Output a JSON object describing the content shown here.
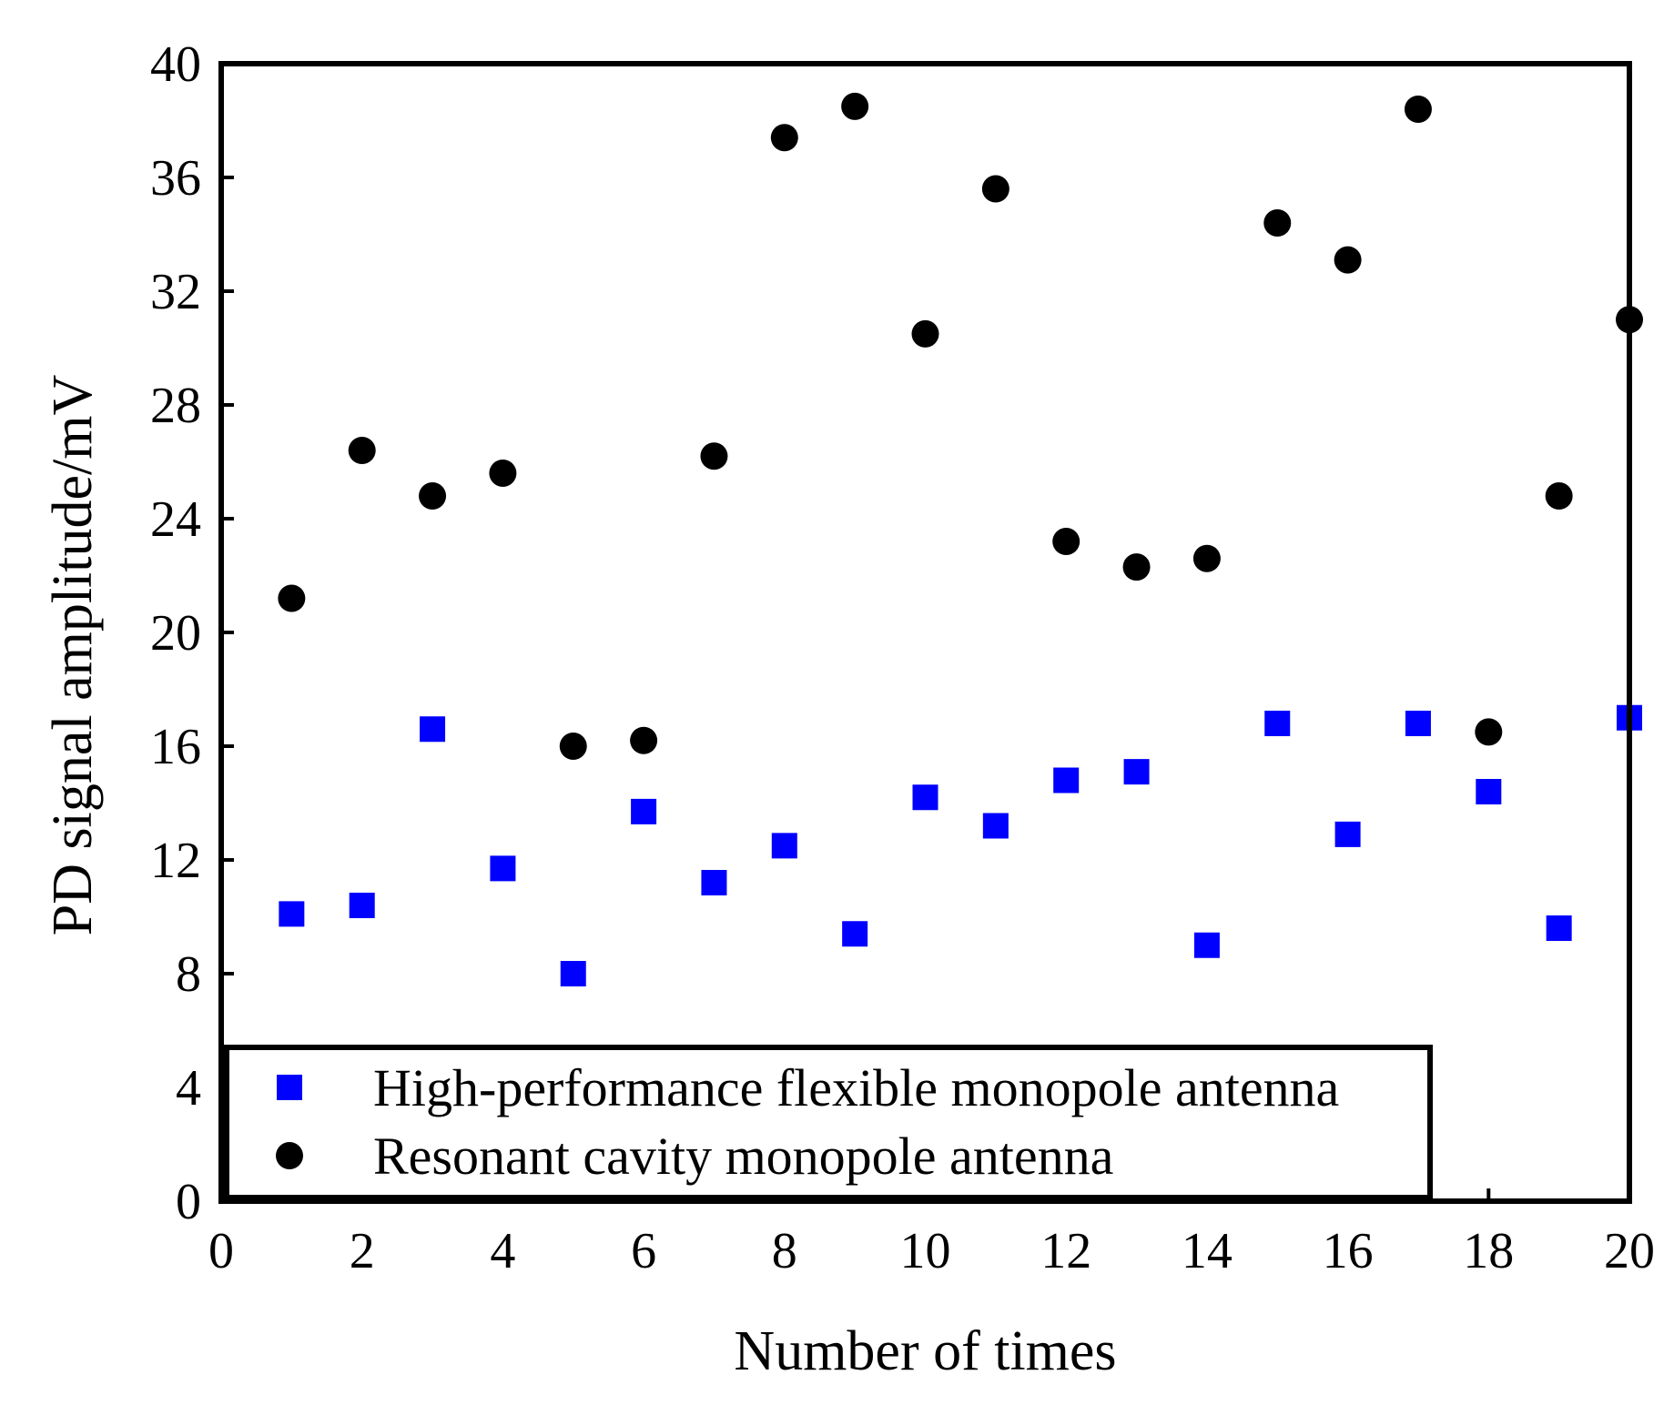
{
  "chart_data": {
    "type": "scatter",
    "title": "",
    "xlabel": "Number of times",
    "ylabel": "PD signal amplitude/mV",
    "xlim": [
      0,
      20
    ],
    "ylim": [
      0,
      40
    ],
    "xticks": [
      "0",
      "2",
      "4",
      "6",
      "8",
      "10",
      "12",
      "14",
      "16",
      "18",
      "20"
    ],
    "yticks": [
      "0",
      "4",
      "8",
      "12",
      "16",
      "20",
      "24",
      "28",
      "32",
      "36",
      "40"
    ],
    "grid": false,
    "legend_position": "bottom-left",
    "series": [
      {
        "name": "High-performance flexible monopole antenna",
        "marker": "square",
        "color": "#0000ff",
        "x": [
          1,
          2,
          3,
          4,
          5,
          6,
          7,
          8,
          9,
          10,
          11,
          12,
          13,
          14,
          15,
          16,
          17,
          18,
          19,
          20
        ],
        "y": [
          10.1,
          10.4,
          16.6,
          11.7,
          8.0,
          13.7,
          11.2,
          12.5,
          9.4,
          14.2,
          13.2,
          14.8,
          15.1,
          9.0,
          16.8,
          12.9,
          16.8,
          14.4,
          9.6,
          17.0
        ]
      },
      {
        "name": "Resonant cavity monopole antenna",
        "marker": "circle",
        "color": "#000000",
        "x": [
          1,
          2,
          3,
          4,
          5,
          6,
          7,
          8,
          9,
          10,
          11,
          12,
          13,
          14,
          15,
          16,
          17,
          18,
          19,
          20
        ],
        "y": [
          21.2,
          26.4,
          24.8,
          25.6,
          16.0,
          16.2,
          26.2,
          37.4,
          38.5,
          30.5,
          35.6,
          23.2,
          22.3,
          22.6,
          34.4,
          33.1,
          38.4,
          16.5,
          24.8,
          31.0
        ]
      }
    ]
  }
}
